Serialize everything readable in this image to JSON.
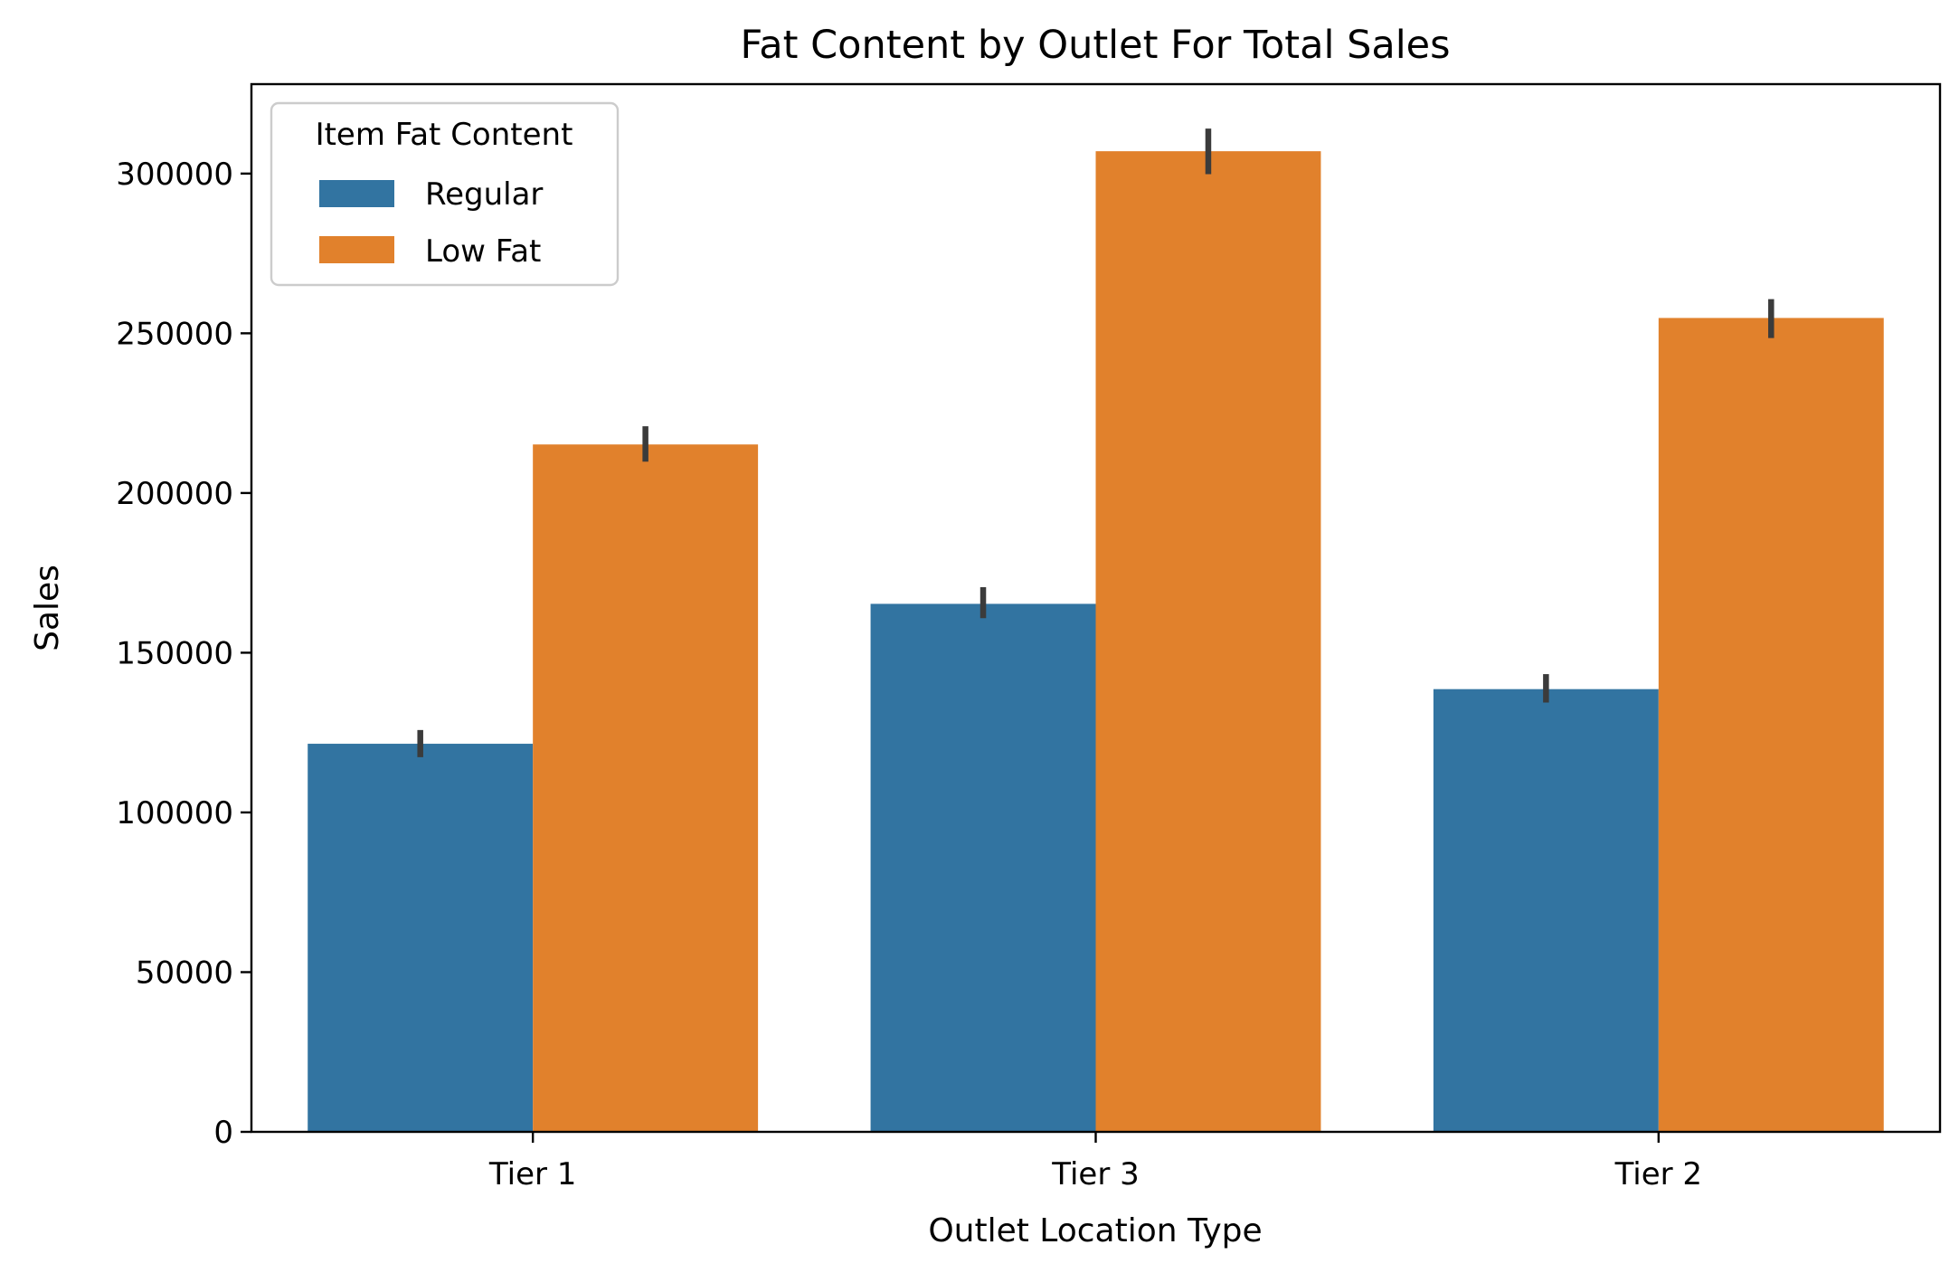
{
  "chart_data": {
    "type": "bar",
    "title": "Fat Content by Outlet For Total Sales",
    "xlabel": "Outlet Location Type",
    "ylabel": "Sales",
    "categories": [
      "Tier 1",
      "Tier 3",
      "Tier 2"
    ],
    "series": [
      {
        "name": "Regular",
        "color": "#3274a1",
        "values": [
          121500,
          165300,
          138600
        ],
        "error_low": [
          117300,
          160800,
          134400
        ],
        "error_high": [
          125800,
          170500,
          143300
        ]
      },
      {
        "name": "Low Fat",
        "color": "#e1812c",
        "values": [
          215200,
          307000,
          254800
        ],
        "error_low": [
          209800,
          299800,
          248500
        ],
        "error_high": [
          220900,
          314100,
          260700
        ]
      }
    ],
    "ylim": [
      0,
      328000
    ],
    "yticks": [
      0,
      50000,
      100000,
      150000,
      200000,
      250000,
      300000
    ],
    "ytick_labels": [
      "0",
      "50000",
      "100000",
      "150000",
      "200000",
      "250000",
      "300000"
    ],
    "legend": {
      "title": "Item Fat Content",
      "placement": "top-left"
    },
    "grid": false,
    "error_bar_color": "#3b3b3b"
  }
}
